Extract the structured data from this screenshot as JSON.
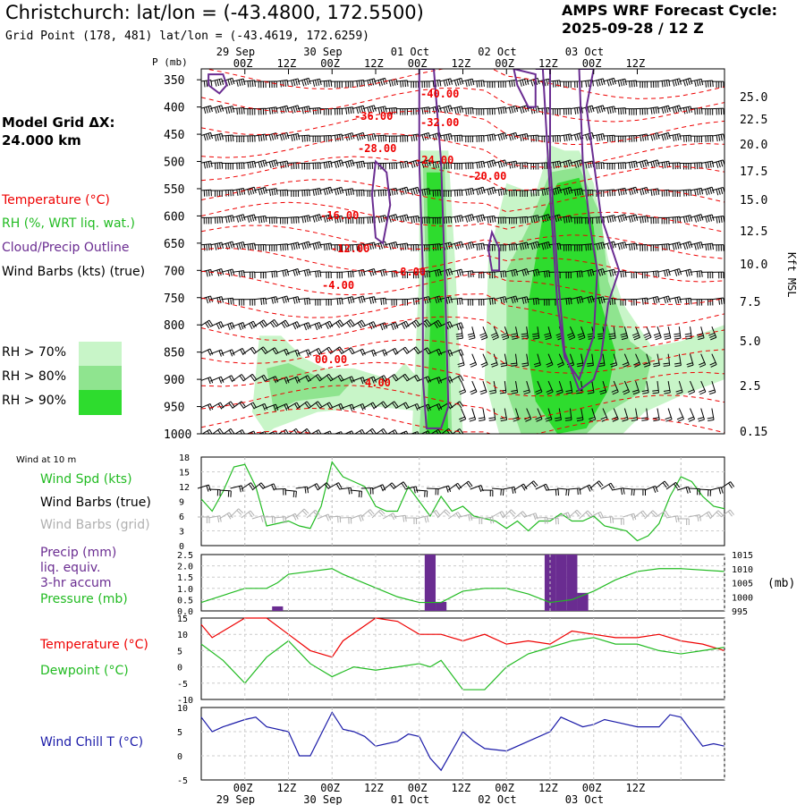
{
  "header": {
    "title": "Christchurch:  lat/lon = (-43.4800, 172.5500)",
    "subtitle": "Grid Point (178, 481) lat/lon = (-43.4619, 172.6259)",
    "cycle_line1": "AMPS WRF Forecast Cycle:",
    "cycle_line2": "2025-09-28 / 12  Z",
    "model_grid_line1": "Model Grid ΔX:",
    "model_grid_line2": " 24.000 km"
  },
  "legend": {
    "temperature": "Temperature (°C)",
    "rh": "RH (%, WRT liq. wat.)",
    "cloud": "Cloud/Precip Outline",
    "wind": "Wind Barbs (kts) (true)",
    "rh70": "RH > 70%",
    "rh80": "RH > 80%",
    "rh90": "RH > 90%"
  },
  "colors": {
    "temp": "#ee0000",
    "rh70": "#c8f5c8",
    "rh80": "#8fe48f",
    "rh90": "#2edc2e",
    "cloud": "#6a2c91",
    "wind_spd": "#22bb22",
    "pressure": "#22bb22",
    "precip": "#6a2c91",
    "dewpoint": "#22bb22",
    "windchill": "#1a1aa8",
    "grid_barbs": "#b0b0b0"
  },
  "time_axis": {
    "top_ticks": [
      "00Z",
      "12Z",
      "00Z",
      "12Z",
      "00Z",
      "12Z",
      "00Z",
      "12Z",
      "00Z",
      "12Z"
    ],
    "top_dates": [
      "29 Sep",
      "30 Sep",
      "01 Oct",
      "02 Oct",
      "03 Oct"
    ],
    "bottom_ticks": [
      "00Z",
      "12Z",
      "00Z",
      "12Z",
      "00Z",
      "12Z",
      "00Z",
      "12Z",
      "00Z",
      "12Z"
    ],
    "bottom_dates": [
      "29 Sep",
      "30 Sep",
      "01 Oct",
      "02 Oct",
      "03 Oct"
    ]
  },
  "chart_data": [
    {
      "type": "heatmap",
      "name": "vertical-cross-section",
      "ylabel_left": "P (mb)",
      "ylabel_right": "Kft MSL",
      "pressure_levels": [
        350,
        400,
        450,
        500,
        550,
        600,
        650,
        700,
        750,
        800,
        850,
        900,
        950,
        1000
      ],
      "height_ticks": [
        "25.0",
        "22.5",
        "20.0",
        "17.5",
        "15.0",
        "12.5",
        "10.0",
        "7.5",
        "5.0",
        "2.5",
        "0.15"
      ],
      "temperature_labels": [
        "-40.00",
        "-36.00",
        "-32.00",
        "-28.00",
        "-24.00",
        "-20.00",
        "-16.00",
        "-12.00",
        "-8.00",
        "-4.00",
        "00.00",
        "4.00"
      ],
      "x_hours": [
        -12,
        132
      ],
      "y_range_mb": [
        1000,
        330
      ]
    },
    {
      "type": "line",
      "name": "wind-10m",
      "header": "Wind at 10 m",
      "label_speed": "Wind Spd (kts)",
      "label_barbs_true": "Wind Barbs (true)",
      "label_barbs_grid": "Wind Barbs (grid)",
      "yticks": [
        "18",
        "15",
        "12",
        "9",
        "6",
        "3",
        "0"
      ],
      "ylim": [
        0,
        18
      ],
      "x_hours": [
        -12,
        -9,
        -6,
        -3,
        0,
        3,
        6,
        9,
        12,
        15,
        18,
        21,
        24,
        27,
        30,
        33,
        36,
        39,
        42,
        45,
        48,
        51,
        54,
        57,
        60,
        63,
        66,
        69,
        72,
        75,
        78,
        81,
        84,
        87,
        90,
        93,
        96,
        99,
        102,
        105,
        108,
        111,
        114,
        117,
        120,
        123,
        126,
        129,
        132
      ],
      "values": [
        9.5,
        7,
        11,
        16,
        16.5,
        12,
        4,
        4.5,
        5,
        4,
        3.5,
        8,
        17,
        14,
        13,
        12,
        8,
        7,
        7,
        12,
        9,
        6,
        10,
        7,
        8,
        6,
        5.5,
        5,
        3.5,
        5,
        3,
        5,
        5,
        6.5,
        5,
        5,
        6,
        4,
        3.5,
        3,
        1,
        2,
        4.5,
        10,
        14,
        13,
        10,
        8,
        7.5
      ]
    },
    {
      "type": "bar",
      "name": "precip-pressure",
      "label_precip1": "Precip (mm)",
      "label_precip2": "liq. equiv.",
      "label_precip3": "3-hr accum",
      "label_pressure": "Pressure (mb)",
      "precip_yticks": [
        "2.5",
        "2.0",
        "1.5",
        "1.0",
        "0.5",
        "0.0"
      ],
      "pressure_yticks": [
        "1015",
        "1010",
        "1005",
        "1000",
        "995"
      ],
      "pressure_unit": "(mb)",
      "precip_ylim": [
        0,
        2.5
      ],
      "pressure_ylim": [
        995,
        1015
      ],
      "precip_bars": [
        {
          "x": 9,
          "v": 0.2
        },
        {
          "x": 51,
          "v": 2.5
        },
        {
          "x": 54,
          "v": 0.4
        },
        {
          "x": 84,
          "v": 2.5
        },
        {
          "x": 87,
          "v": 2.5
        },
        {
          "x": 90,
          "v": 2.5
        },
        {
          "x": 93,
          "v": 0.8
        }
      ],
      "pressure_x": [
        -12,
        0,
        6,
        9,
        12,
        24,
        27,
        42,
        48,
        54,
        60,
        66,
        72,
        78,
        84,
        90,
        96,
        102,
        108,
        114,
        120,
        132
      ],
      "pressure_values": [
        998,
        1003,
        1003,
        1005,
        1008,
        1010,
        1008,
        1000,
        998,
        998,
        1002,
        1003,
        1003,
        1001,
        998,
        999,
        1002,
        1006,
        1009,
        1010,
        1010,
        1009
      ]
    },
    {
      "type": "line",
      "name": "temp-dewpoint",
      "label_temp": "Temperature (°C)",
      "label_dew": "Dewpoint (°C)",
      "yticks": [
        "15",
        "10",
        "5",
        "0",
        "-5",
        "-10"
      ],
      "ylim": [
        -10,
        15
      ],
      "temp_x": [
        -12,
        -9,
        0,
        6,
        12,
        18,
        24,
        27,
        36,
        42,
        48,
        51,
        54,
        60,
        66,
        72,
        78,
        84,
        90,
        96,
        102,
        108,
        114,
        120,
        126,
        132
      ],
      "temp_values": [
        13,
        9,
        15,
        15,
        10,
        5,
        3,
        8,
        15,
        14,
        10,
        10,
        10,
        8,
        10,
        7,
        8,
        7,
        11,
        10,
        9,
        9,
        10,
        8,
        7,
        5
      ],
      "dew_x": [
        -12,
        -6,
        0,
        6,
        12,
        18,
        24,
        30,
        36,
        42,
        48,
        51,
        54,
        60,
        66,
        72,
        78,
        84,
        90,
        96,
        102,
        108,
        114,
        120,
        126,
        132
      ],
      "dew_values": [
        7,
        2,
        -5,
        3,
        8,
        1,
        -3,
        0,
        -1,
        0,
        1,
        0,
        2,
        -7,
        -7,
        0,
        4,
        6,
        8,
        9,
        7,
        7,
        5,
        4,
        5,
        6
      ]
    },
    {
      "type": "line",
      "name": "wind-chill",
      "label": "Wind Chill T (°C)",
      "yticks": [
        "10",
        "5",
        "0",
        "-5"
      ],
      "ylim": [
        -5,
        10
      ],
      "x": [
        -12,
        -9,
        -6,
        0,
        3,
        6,
        12,
        15,
        18,
        24,
        27,
        30,
        33,
        36,
        42,
        45,
        48,
        51,
        54,
        57,
        60,
        63,
        66,
        72,
        78,
        84,
        87,
        90,
        93,
        96,
        99,
        102,
        108,
        114,
        117,
        120,
        126,
        129,
        132
      ],
      "values": [
        8,
        5,
        6,
        7.5,
        8,
        6,
        5,
        0,
        0,
        9,
        5.5,
        5,
        4,
        2,
        3,
        4.5,
        4,
        -0.5,
        -3,
        1,
        5,
        3,
        1.5,
        1,
        3,
        5,
        8,
        7,
        6,
        6.5,
        7.5,
        7,
        6,
        6,
        8.5,
        8,
        2,
        2.5,
        2
      ]
    }
  ]
}
